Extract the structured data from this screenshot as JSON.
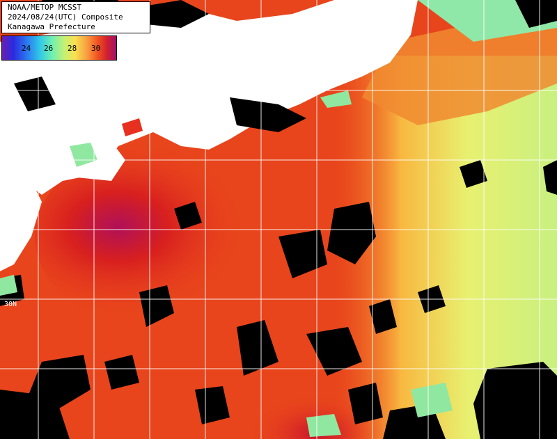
{
  "header": {
    "line1": "NOAA/METOP MCSST",
    "line2": "2024/08/24(UTC) Composite",
    "line3": "Kanagawa Prefecture"
  },
  "legend": {
    "ticks": [
      "24",
      "26",
      "28",
      "30"
    ]
  },
  "grid": {
    "lat_label": "30N"
  },
  "colors": {
    "land": "#ffffff",
    "cloud": "#000000",
    "sst_hot": "#c8102e",
    "sst_warm": "#f05a1e",
    "sst_mild": "#f8c850",
    "sst_cool": "#d8f27a",
    "gridline": "#ffffff"
  }
}
